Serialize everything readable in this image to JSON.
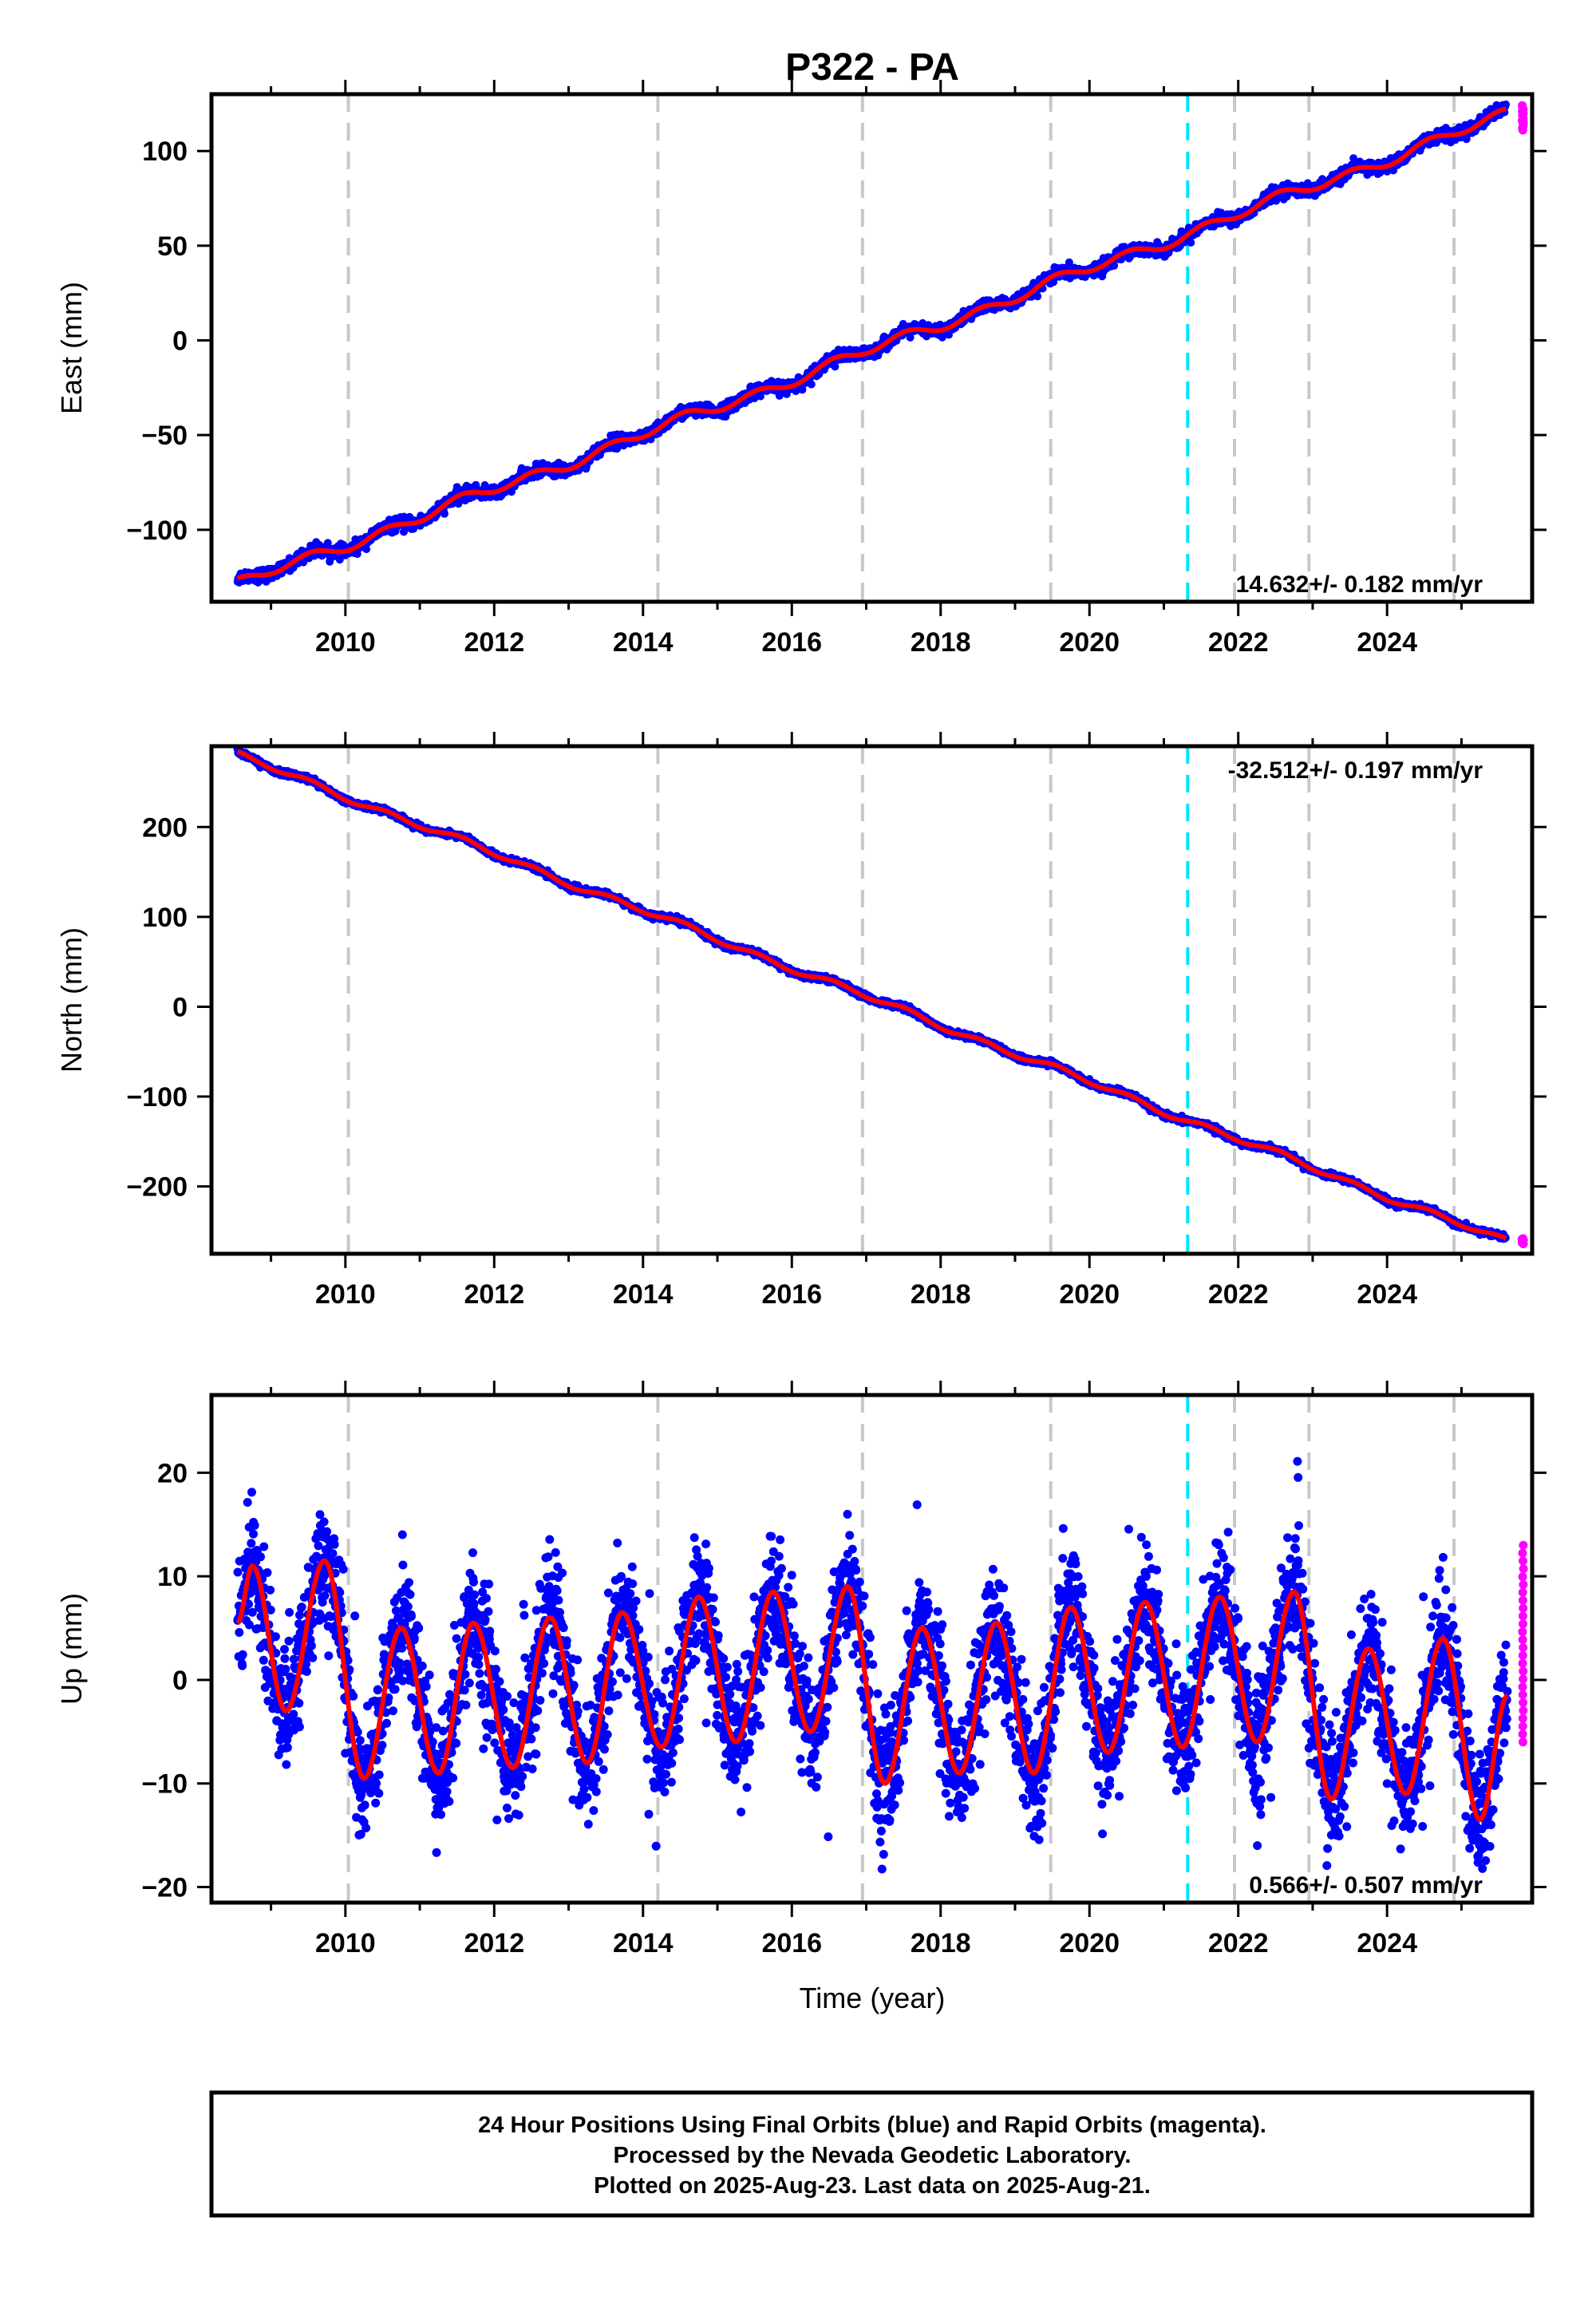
{
  "title": "P322 - PA",
  "colors": {
    "final_orbits": "#0000ff",
    "rapid_orbits": "#ff00ff",
    "model": "#ff0000",
    "equipment_change": "#00e5ff",
    "event_lines": "#c8c8c8"
  },
  "footer": {
    "line1": "24 Hour Positions Using Final Orbits (blue) and Rapid Orbits (magenta).",
    "line2": "Processed by the Nevada Geodetic Laboratory.",
    "line3": "Plotted on 2025-Aug-23. Last data on 2025-Aug-21."
  },
  "chart_data": [
    {
      "type": "scatter",
      "panel": "east",
      "ylabel": "East (mm)",
      "xlabel": "",
      "xlim": [
        2008.2,
        2025.95
      ],
      "ylim": [
        -138,
        130
      ],
      "xticks": [
        2010,
        2012,
        2014,
        2016,
        2018,
        2020,
        2022,
        2024
      ],
      "yticks": [
        -100,
        -50,
        0,
        50,
        100
      ],
      "ytick_labels": [
        "−100",
        "−50",
        "0",
        "50",
        "100"
      ],
      "grid": false,
      "vertical_lines": {
        "gray": [
          2010.04,
          2014.2,
          2016.95,
          2019.48,
          2021.95,
          2022.95,
          2024.9
        ],
        "cyan": [
          2021.32
        ]
      },
      "trend": {
        "start": [
          2008.55,
          -129
        ],
        "end": [
          2025.6,
          119
        ],
        "seasonal_amplitude": 2.5
      },
      "rapid_orbit_points": {
        "x_range": [
          2025.5,
          2025.64
        ],
        "y_range": [
          111,
          124
        ]
      },
      "rate_label": "14.632+/- 0.182 mm/yr",
      "rate_label_position": "bottom-right"
    },
    {
      "type": "scatter",
      "panel": "north",
      "ylabel": "North (mm)",
      "xlabel": "",
      "xlim": [
        2008.2,
        2025.95
      ],
      "ylim": [
        -275,
        290
      ],
      "xticks": [
        2010,
        2012,
        2014,
        2016,
        2018,
        2020,
        2022,
        2024
      ],
      "yticks": [
        -200,
        -100,
        0,
        100,
        200
      ],
      "ytick_labels": [
        "−200",
        "−100",
        "0",
        "100",
        "200"
      ],
      "grid": false,
      "vertical_lines": {
        "gray": [
          2010.04,
          2014.2,
          2016.95,
          2019.48,
          2021.95,
          2022.95,
          2024.9
        ],
        "cyan": [
          2021.32
        ]
      },
      "trend": {
        "start": [
          2008.55,
          280
        ],
        "end": [
          2025.6,
          -262
        ],
        "seasonal_amplitude": 3
      },
      "rapid_orbit_points": {
        "x_range": [
          2025.5,
          2025.64
        ],
        "y_range": [
          -264,
          -258
        ]
      },
      "rate_label": "-32.512+/- 0.197 mm/yr",
      "rate_label_position": "top-right"
    },
    {
      "type": "scatter",
      "panel": "up",
      "ylabel": "Up (mm)",
      "xlabel": "Time (year)",
      "xlim": [
        2008.2,
        2025.95
      ],
      "ylim": [
        -21.5,
        27.5
      ],
      "xticks": [
        2010,
        2012,
        2014,
        2016,
        2018,
        2020,
        2022,
        2024
      ],
      "yticks": [
        -20,
        -10,
        0,
        10,
        20
      ],
      "ytick_labels": [
        "−20",
        "−10",
        "0",
        "10",
        "20"
      ],
      "grid": false,
      "vertical_lines": {
        "gray": [
          2010.04,
          2014.2,
          2016.95,
          2019.48,
          2021.95,
          2022.95,
          2024.9
        ],
        "cyan": [
          2021.32
        ]
      },
      "model_peaks": [
        [
          2008.55,
          5.5
        ],
        [
          2008.75,
          11
        ],
        [
          2009.2,
          -3
        ],
        [
          2009.72,
          11.5
        ],
        [
          2010.25,
          -9.5
        ],
        [
          2010.75,
          5
        ],
        [
          2011.25,
          -9
        ],
        [
          2011.72,
          5.5
        ],
        [
          2012.25,
          -8.5
        ],
        [
          2012.75,
          6
        ],
        [
          2013.25,
          -8
        ],
        [
          2013.72,
          6.5
        ],
        [
          2014.25,
          -6.5
        ],
        [
          2014.75,
          8
        ],
        [
          2015.25,
          -6
        ],
        [
          2015.75,
          8.5
        ],
        [
          2016.25,
          -5
        ],
        [
          2016.75,
          9
        ],
        [
          2017.25,
          -10
        ],
        [
          2017.75,
          5
        ],
        [
          2018.25,
          -9
        ],
        [
          2018.75,
          5.5
        ],
        [
          2019.25,
          -9
        ],
        [
          2019.75,
          7
        ],
        [
          2020.25,
          -7
        ],
        [
          2020.75,
          7.5
        ],
        [
          2021.25,
          -6.5
        ],
        [
          2021.75,
          8
        ],
        [
          2022.25,
          -6
        ],
        [
          2022.75,
          8.5
        ],
        [
          2023.25,
          -11.5
        ],
        [
          2023.75,
          3
        ],
        [
          2024.25,
          -11
        ],
        [
          2024.75,
          4
        ],
        [
          2025.25,
          -13.5
        ],
        [
          2025.62,
          -1.5
        ]
      ],
      "scatter_spread": 4.5,
      "rapid_orbit_points": {
        "x_range": [
          2025.55,
          2025.64
        ],
        "y_range": [
          -6,
          13
        ]
      },
      "rate_label": "0.566+/- 0.507 mm/yr",
      "rate_label_position": "bottom-right"
    }
  ]
}
